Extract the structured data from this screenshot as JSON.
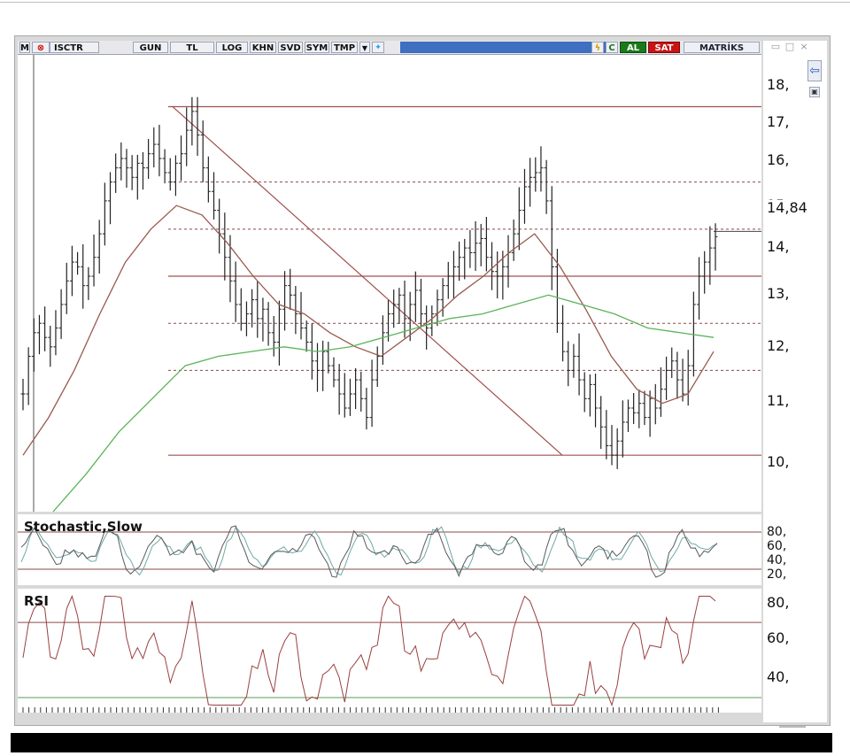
{
  "toolbar": {
    "mode": "M",
    "symbol": "ISCTR",
    "period": "GUN",
    "currency": "TL",
    "buttons": [
      "LOG",
      "KHN",
      "SVD",
      "SYM",
      "TMP"
    ],
    "buy": "AL",
    "sell": "SAT",
    "brand": "MATRİKS"
  },
  "indicators": {
    "stochastic_label": "Stochastic,Slow",
    "rsi_label": "RSI"
  },
  "price_axis": {
    "ticks": [
      "18,",
      "17,",
      "16,",
      "15,",
      "14,",
      "13,",
      "12,",
      "11,",
      "10,"
    ],
    "last_price": "14,84"
  },
  "stoch_axis": {
    "ticks": [
      "80,",
      "60,",
      "40,",
      "20,"
    ]
  },
  "rsi_axis": {
    "ticks": [
      "80,",
      "60,",
      "40,"
    ]
  },
  "chart_data": {
    "type": "line",
    "series_style": "ohlc-bars",
    "price_ylim": [
      9.0,
      18.7
    ],
    "closes": [
      11.5,
      12.3,
      12.8,
      13.0,
      12.7,
      12.5,
      12.9,
      13.4,
      13.9,
      14.3,
      14.2,
      13.8,
      14.0,
      14.4,
      14.9,
      15.6,
      16.0,
      16.3,
      16.5,
      16.3,
      16.1,
      16.4,
      16.3,
      16.6,
      16.8,
      16.5,
      16.2,
      16.0,
      16.4,
      16.6,
      17.1,
      17.5,
      17.0,
      16.3,
      15.8,
      15.4,
      14.9,
      14.4,
      13.9,
      13.4,
      13.0,
      13.2,
      13.5,
      13.1,
      13.3,
      12.8,
      12.6,
      13.3,
      13.8,
      13.6,
      13.2,
      12.9,
      12.6,
      12.2,
      12.0,
      12.4,
      12.1,
      11.8,
      11.5,
      11.2,
      11.5,
      11.8,
      11.4,
      11.0,
      11.8,
      12.3,
      12.8,
      13.2,
      13.4,
      13.6,
      13.1,
      13.4,
      13.7,
      13.2,
      12.9,
      13.2,
      13.5,
      13.8,
      14.0,
      14.2,
      14.4,
      14.6,
      14.5,
      14.7,
      14.8,
      14.4,
      14.1,
      14.0,
      14.2,
      14.5,
      14.9,
      15.4,
      15.9,
      16.1,
      16.2,
      16.3,
      15.6,
      14.2,
      13.0,
      12.4,
      12.0,
      12.3,
      11.8,
      11.4,
      11.7,
      11.2,
      10.8,
      10.4,
      10.2,
      10.5,
      10.9,
      11.2,
      11.1,
      11.3,
      11.0,
      11.4,
      11.2,
      11.6,
      12.0,
      12.2,
      11.8,
      11.5,
      12.1,
      13.4,
      14.0,
      14.3,
      14.6,
      14.84
    ],
    "moving_average_short": [
      10.2,
      11.0,
      12.0,
      13.2,
      14.3,
      15.0,
      15.5,
      15.3,
      14.7,
      14.0,
      13.4,
      13.2,
      12.8,
      12.5,
      12.3,
      12.7,
      13.1,
      13.6,
      14.0,
      14.5,
      14.9,
      14.2,
      13.3,
      12.3,
      11.6,
      11.3,
      11.5,
      12.4
    ],
    "moving_average_long": [
      9.0,
      9.8,
      10.7,
      11.4,
      12.1,
      12.3,
      12.4,
      12.5,
      12.4,
      12.5,
      12.7,
      12.9,
      13.1,
      13.2,
      13.4,
      13.6,
      13.4,
      13.2,
      12.9,
      12.8,
      12.7
    ],
    "horizontal_levels": [
      17.6,
      16.0,
      15.0,
      14.0,
      13.0,
      12.0,
      10.2
    ],
    "stochastic_levels": [
      80,
      20
    ],
    "rsi_levels": [
      70,
      30
    ]
  }
}
